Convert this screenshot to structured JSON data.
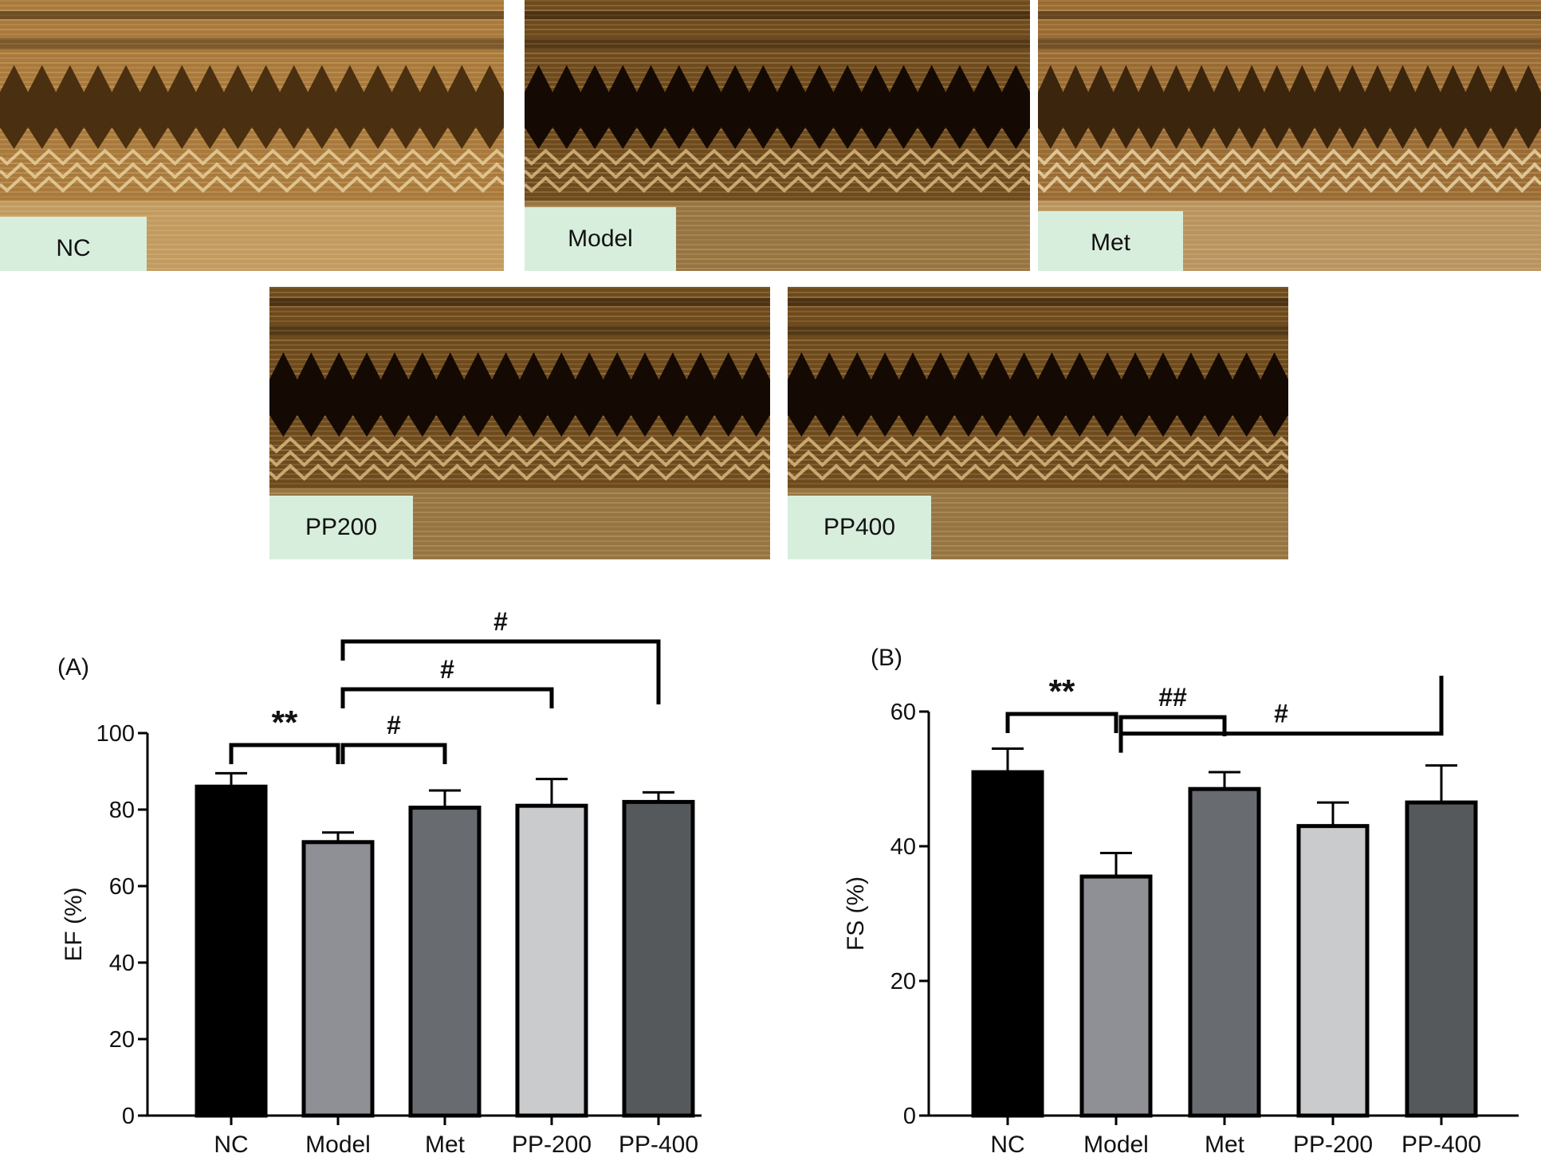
{
  "echo_panels": [
    {
      "label": "NC",
      "tone": "light"
    },
    {
      "label": "Model",
      "tone": "dark"
    },
    {
      "label": "Met",
      "tone": "medium"
    },
    {
      "label": "PP200",
      "tone": "dark"
    },
    {
      "label": "PP400",
      "tone": "dark"
    }
  ],
  "chart_data": [
    {
      "type": "bar",
      "panel_label": "(A)",
      "ylabel": "EF (%)",
      "categories": [
        "NC",
        "Model",
        "Met",
        "PP-200",
        "PP-400"
      ],
      "values": [
        86,
        71.5,
        80.5,
        81,
        82
      ],
      "errors": [
        3.5,
        2.5,
        4.5,
        7,
        2.5
      ],
      "colors": [
        "#000000",
        "#8e9096",
        "#686b6f",
        "#c9cbcc",
        "#55595b"
      ],
      "ylim": [
        0,
        100
      ],
      "yticks": [
        0,
        20,
        40,
        60,
        80,
        100
      ],
      "brackets": [
        {
          "from": 0,
          "to": 1,
          "symbol": "**"
        },
        {
          "from": 1,
          "to": 2,
          "symbol": "#"
        },
        {
          "from": 1,
          "to": 3,
          "symbol": "#"
        },
        {
          "from": 1,
          "to": 4,
          "symbol": "#"
        }
      ]
    },
    {
      "type": "bar",
      "panel_label": "(B)",
      "ylabel": "FS (%)",
      "categories": [
        "NC",
        "Model",
        "Met",
        "PP-200",
        "PP-400"
      ],
      "values": [
        51,
        35.5,
        48.5,
        43,
        46.5
      ],
      "errors": [
        3.5,
        3.5,
        2.5,
        3.5,
        5.5
      ],
      "colors": [
        "#000000",
        "#8e9096",
        "#686b6f",
        "#c9cbcc",
        "#55595b"
      ],
      "ylim": [
        0,
        60
      ],
      "yticks": [
        0,
        20,
        40,
        60
      ],
      "brackets": [
        {
          "from": 0,
          "to": 1,
          "symbol": "**"
        },
        {
          "from": 1,
          "to": 2,
          "symbol": "##"
        },
        {
          "from": 1,
          "to": 4,
          "symbol": "#"
        }
      ]
    }
  ]
}
